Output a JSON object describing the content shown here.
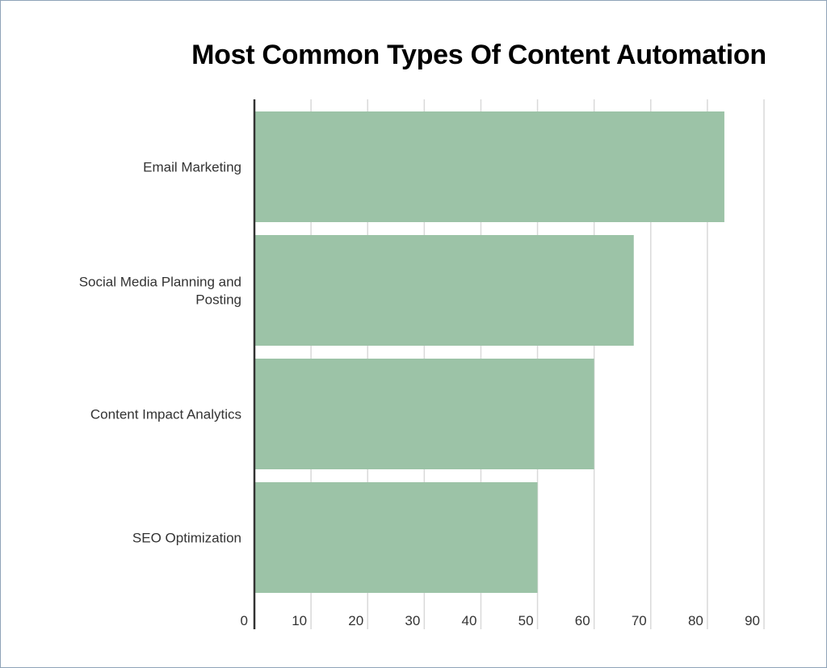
{
  "chart_data": {
    "type": "bar",
    "orientation": "horizontal",
    "title": "Most Common Types Of Content Automation",
    "categories": [
      [
        "Email Marketing"
      ],
      [
        "Social Media Planning and",
        "Posting"
      ],
      [
        "Content Impact Analytics"
      ],
      [
        "SEO Optimization"
      ]
    ],
    "values": [
      83,
      67,
      60,
      50
    ],
    "xlim": [
      0,
      90
    ],
    "x_ticks": [
      0,
      10,
      20,
      30,
      40,
      50,
      60,
      70,
      80,
      90
    ],
    "grid": true,
    "bar_color": "#9cc3a7",
    "grid_color": "#d9d9d9",
    "axis_color": "#333333"
  }
}
